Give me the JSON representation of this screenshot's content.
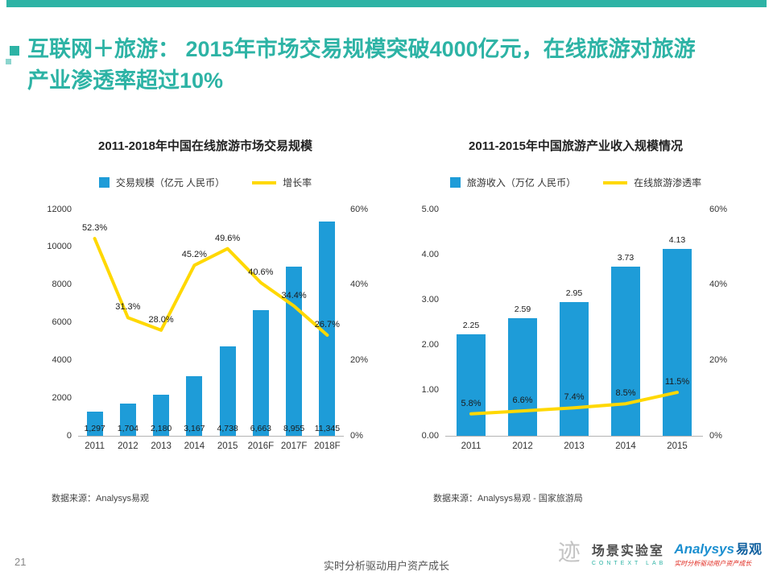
{
  "page": {
    "title": "互联网＋旅游： 2015年市场交易规模突破4000亿元，在线旅游对旅游产业渗透率超过10%",
    "page_number": "21",
    "footer_slogan": "实时分析驱动用户资产成长",
    "logo": {
      "lab_name": "场景实验室",
      "lab_sub": "CONTEXT LAB",
      "brand_en": "Analysys",
      "brand_cn": "易观",
      "brand_slogan": "实时分析驱动用户资产成长"
    },
    "colors": {
      "accent": "#2db3a5",
      "bar": "#1e9cd8",
      "line": "#ffd800"
    }
  },
  "chart_data": [
    {
      "type": "bar+line",
      "title": "2011-2018年中国在线旅游市场交易规模",
      "legend": [
        "交易规模（亿元 人民币）",
        "增长率"
      ],
      "legend_position": "top",
      "grid": false,
      "categories": [
        "2011",
        "2012",
        "2013",
        "2014",
        "2015",
        "2016F",
        "2017F",
        "2018F"
      ],
      "series": [
        {
          "name": "交易规模（亿元 人民币）",
          "type": "bar",
          "values": [
            1297,
            1704,
            2180,
            3167,
            4738,
            6663,
            8955,
            11345
          ],
          "labels": [
            "1,297",
            "1,704",
            "2,180",
            "3,167",
            "4,738",
            "6,663",
            "8,955",
            "11,345"
          ]
        },
        {
          "name": "增长率",
          "type": "line",
          "values": [
            52.3,
            31.3,
            28.0,
            45.2,
            49.6,
            40.6,
            34.4,
            26.7
          ],
          "labels": [
            "52.3%",
            "31.3%",
            "28.0%",
            "45.2%",
            "49.6%",
            "40.6%",
            "34.4%",
            "26.7%"
          ]
        }
      ],
      "ylim": [
        0,
        12000
      ],
      "yticks": [
        "0",
        "2000",
        "4000",
        "6000",
        "8000",
        "10000",
        "12000"
      ],
      "y2lim": [
        0,
        60
      ],
      "y2ticks": [
        "0%",
        "20%",
        "40%",
        "60%"
      ],
      "source": "数据来源：Analysys易观"
    },
    {
      "type": "bar+line",
      "title": "2011-2015年中国旅游产业收入规模情况",
      "legend": [
        "旅游收入（万亿 人民币）",
        "在线旅游渗透率"
      ],
      "legend_position": "top",
      "grid": false,
      "categories": [
        "2011",
        "2012",
        "2013",
        "2014",
        "2015"
      ],
      "series": [
        {
          "name": "旅游收入（万亿 人民币）",
          "type": "bar",
          "values": [
            2.25,
            2.59,
            2.95,
            3.73,
            4.13
          ],
          "labels": [
            "2.25",
            "2.59",
            "2.95",
            "3.73",
            "4.13"
          ]
        },
        {
          "name": "在线旅游渗透率",
          "type": "line",
          "values": [
            5.8,
            6.6,
            7.4,
            8.5,
            11.5
          ],
          "labels": [
            "5.8%",
            "6.6%",
            "7.4%",
            "8.5%",
            "11.5%"
          ]
        }
      ],
      "ylim": [
        0,
        5
      ],
      "yticks": [
        "0.00",
        "1.00",
        "2.00",
        "3.00",
        "4.00",
        "5.00"
      ],
      "y2lim": [
        0,
        60
      ],
      "y2ticks": [
        "0%",
        "20%",
        "40%",
        "60%"
      ],
      "source": "数据来源：Analysys易观 - 国家旅游局"
    }
  ]
}
